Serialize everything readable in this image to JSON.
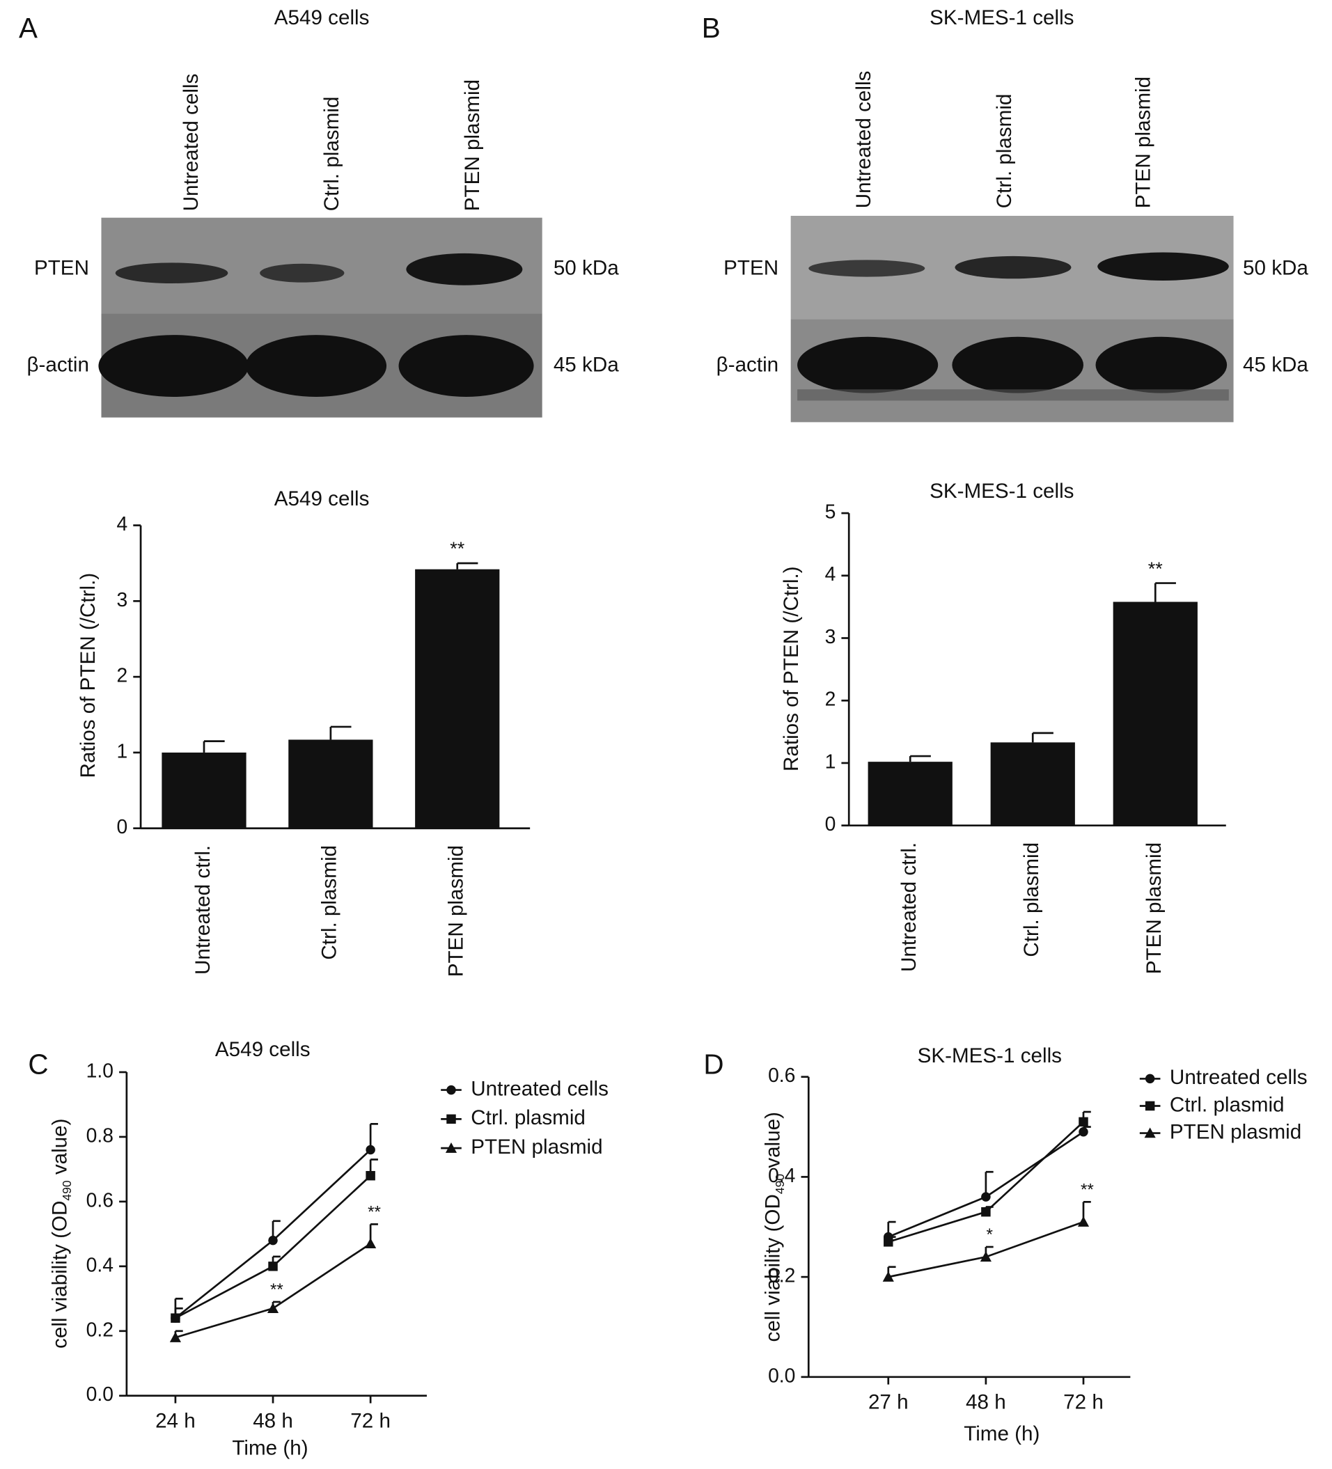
{
  "panel_labels": [
    "A",
    "B",
    "C",
    "D"
  ],
  "blots": [
    {
      "title": "A549 cells",
      "lanes": [
        "Untreated cells",
        "Ctrl. plasmid",
        "PTEN plasmid"
      ],
      "rows": [
        {
          "label": "PTEN",
          "size": "50 kDa"
        },
        {
          "label": "β-actin",
          "size": "45 kDa"
        }
      ]
    },
    {
      "title": "SK-MES-1 cells",
      "lanes": [
        "Untreated cells",
        "Ctrl. plasmid",
        "PTEN plasmid"
      ],
      "rows": [
        {
          "label": "PTEN",
          "size": "50 kDa"
        },
        {
          "label": "β-actin",
          "size": "45 kDa"
        }
      ]
    }
  ],
  "chart_data": [
    {
      "type": "bar",
      "title": "A549 cells",
      "ylabel": "Ratios of PTEN (/Ctrl.)",
      "categories": [
        "Untreated ctrl.",
        "Ctrl. plasmid",
        "PTEN plasmid"
      ],
      "values": [
        1.0,
        1.17,
        3.42
      ],
      "errors": [
        0.15,
        0.17,
        0.08
      ],
      "color": "#111111",
      "annotations": [
        {
          "index": 2,
          "text": "**"
        }
      ],
      "ylim": [
        0,
        4
      ],
      "yticks": [
        0,
        1,
        2,
        3,
        4
      ]
    },
    {
      "type": "bar",
      "title": "SK-MES-1 cells",
      "ylabel": "Ratios of PTEN (/Ctrl.)",
      "categories": [
        "Untreated ctrl.",
        "Ctrl. plasmid",
        "PTEN plasmid"
      ],
      "values": [
        1.02,
        1.33,
        3.58
      ],
      "errors": [
        0.09,
        0.15,
        0.3
      ],
      "color": "#111111",
      "annotations": [
        {
          "index": 2,
          "text": "**"
        }
      ],
      "ylim": [
        0,
        5
      ],
      "yticks": [
        0,
        1,
        2,
        3,
        4,
        5
      ]
    },
    {
      "type": "line",
      "title": "A549 cells",
      "xlabel": "Time (h)",
      "ylabel": {
        "text": "cell viability (OD",
        "sub": "490",
        "end": " value)"
      },
      "categories": [
        "24 h",
        "48 h",
        "72 h"
      ],
      "series": [
        {
          "name": "Untreated cells",
          "color": "#111111",
          "marker": "circle",
          "values": [
            0.24,
            0.48,
            0.76
          ],
          "errors": [
            0.06,
            0.06,
            0.08
          ]
        },
        {
          "name": "Ctrl. plasmid",
          "color": "#111111",
          "marker": "square",
          "values": [
            0.24,
            0.4,
            0.68
          ],
          "errors": [
            0.03,
            0.03,
            0.05
          ]
        },
        {
          "name": "PTEN plasmid",
          "color": "#111111",
          "marker": "triangle",
          "values": [
            0.18,
            0.27,
            0.47
          ],
          "errors": [
            0.02,
            0.02,
            0.06
          ],
          "annotations": [
            {
              "index": 1,
              "text": "**"
            },
            {
              "index": 2,
              "text": "**"
            }
          ]
        }
      ],
      "ylim": [
        0,
        1
      ],
      "yticks": [
        {
          "value": 0,
          "label": "0.0"
        },
        0.2,
        0.4,
        0.6,
        0.8,
        {
          "value": 1,
          "label": "1.0"
        }
      ]
    },
    {
      "type": "line",
      "title": "SK-MES-1 cells",
      "xlabel": "Time (h)",
      "ylabel": {
        "text": "cell viability (OD",
        "sub": "490",
        "end": " value)"
      },
      "categories": [
        "27 h",
        "48 h",
        "72 h"
      ],
      "series": [
        {
          "name": "Untreated cells",
          "color": "#111111",
          "marker": "circle",
          "values": [
            0.28,
            0.36,
            0.49
          ],
          "errors": [
            0.03,
            0.05,
            0.01
          ]
        },
        {
          "name": "Ctrl. plasmid",
          "color": "#111111",
          "marker": "square",
          "values": [
            0.27,
            0.33,
            0.51
          ],
          "errors": [
            0.01,
            0.01,
            0.02
          ]
        },
        {
          "name": "PTEN plasmid",
          "color": "#111111",
          "marker": "triangle",
          "values": [
            0.2,
            0.24,
            0.31
          ],
          "errors": [
            0.02,
            0.02,
            0.04
          ],
          "annotations": [
            {
              "index": 1,
              "text": "*"
            },
            {
              "index": 2,
              "text": "**"
            }
          ]
        }
      ],
      "ylim": [
        0,
        0.6
      ],
      "yticks": [
        {
          "value": 0,
          "label": "0.0"
        },
        0.2,
        0.4,
        0.6
      ]
    }
  ]
}
